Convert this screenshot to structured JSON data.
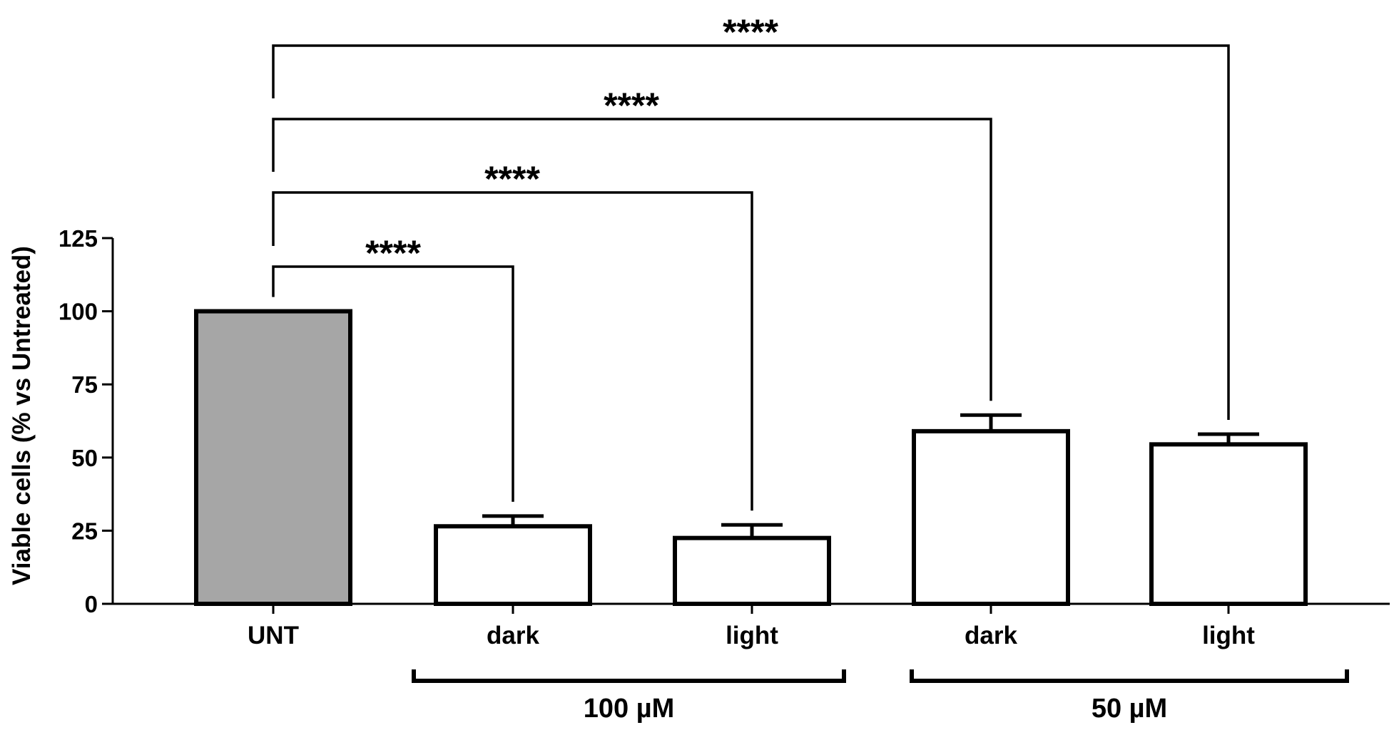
{
  "chart_data": {
    "type": "bar",
    "title": "",
    "xlabel": "",
    "ylabel": "Viable cells (% vs Untreated)",
    "ylim": [
      0,
      125
    ],
    "yticks": [
      0,
      25,
      50,
      75,
      100,
      125
    ],
    "grid": false,
    "categories": [
      "UNT",
      "dark",
      "light",
      "dark",
      "light"
    ],
    "values": [
      100,
      26.5,
      22.5,
      59,
      54.5
    ],
    "error_upper": [
      0,
      3.5,
      4.5,
      5.5,
      3.5
    ],
    "groups": [
      {
        "label": "100 µM",
        "categories": [
          1,
          2
        ]
      },
      {
        "label": "50 µM",
        "categories": [
          3,
          4
        ]
      }
    ],
    "significance": [
      {
        "from": 0,
        "to": 1,
        "label": "****"
      },
      {
        "from": 0,
        "to": 2,
        "label": "****"
      },
      {
        "from": 0,
        "to": 3,
        "label": "****"
      },
      {
        "from": 0,
        "to": 4,
        "label": "****"
      }
    ],
    "colors": {
      "control_bar": "#a6a6a6",
      "treated_bar": "#ffffff",
      "stroke": "#000000"
    }
  }
}
